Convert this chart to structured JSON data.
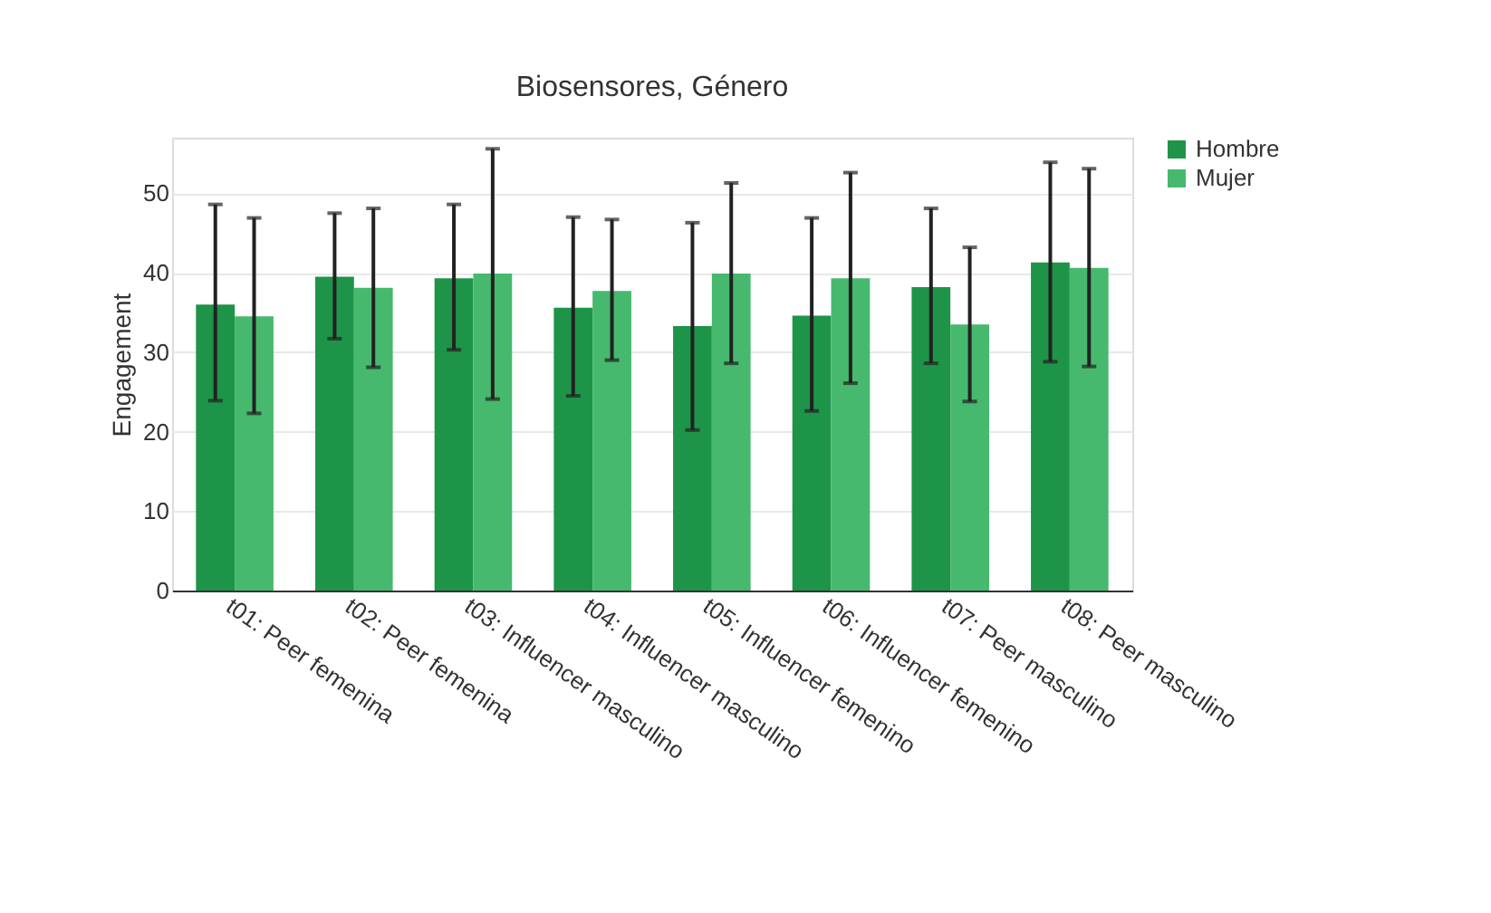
{
  "chart_data": {
    "type": "bar",
    "title": "Biosensores, Género",
    "ylabel": "Engagement",
    "categories": [
      "t01: Peer femenina",
      "t02: Peer femenina",
      "t03: Influencer masculino",
      "t04: Influencer masculino",
      "t05: Influencer femenino",
      "t06: Influencer femenino",
      "t07: Peer masculino",
      "t08: Peer masculino"
    ],
    "series": [
      {
        "name": "Hombre",
        "color": "#1e9448",
        "values": [
          36.0,
          39.5,
          39.3,
          35.6,
          33.3,
          34.6,
          38.2,
          41.3
        ],
        "errors": [
          [
            23.9,
            48.6
          ],
          [
            31.7,
            47.5
          ],
          [
            30.3,
            48.6
          ],
          [
            24.5,
            47.0
          ],
          [
            20.2,
            46.3
          ],
          [
            22.6,
            46.9
          ],
          [
            28.6,
            48.1
          ],
          [
            28.8,
            53.9
          ]
        ]
      },
      {
        "name": "Mujer",
        "color": "#46b96e",
        "values": [
          34.5,
          38.1,
          39.9,
          37.7,
          39.9,
          39.3,
          33.5,
          40.6
        ],
        "errors": [
          [
            22.3,
            46.9
          ],
          [
            28.1,
            48.1
          ],
          [
            24.1,
            55.6
          ],
          [
            29.0,
            46.7
          ],
          [
            28.6,
            51.3
          ],
          [
            26.1,
            52.6
          ],
          [
            23.8,
            43.2
          ],
          [
            28.2,
            53.1
          ]
        ]
      }
    ],
    "ylim": [
      0,
      57
    ],
    "yticks": [
      0,
      10,
      20,
      30,
      40,
      50
    ],
    "grid": "y",
    "legend": "top right"
  }
}
